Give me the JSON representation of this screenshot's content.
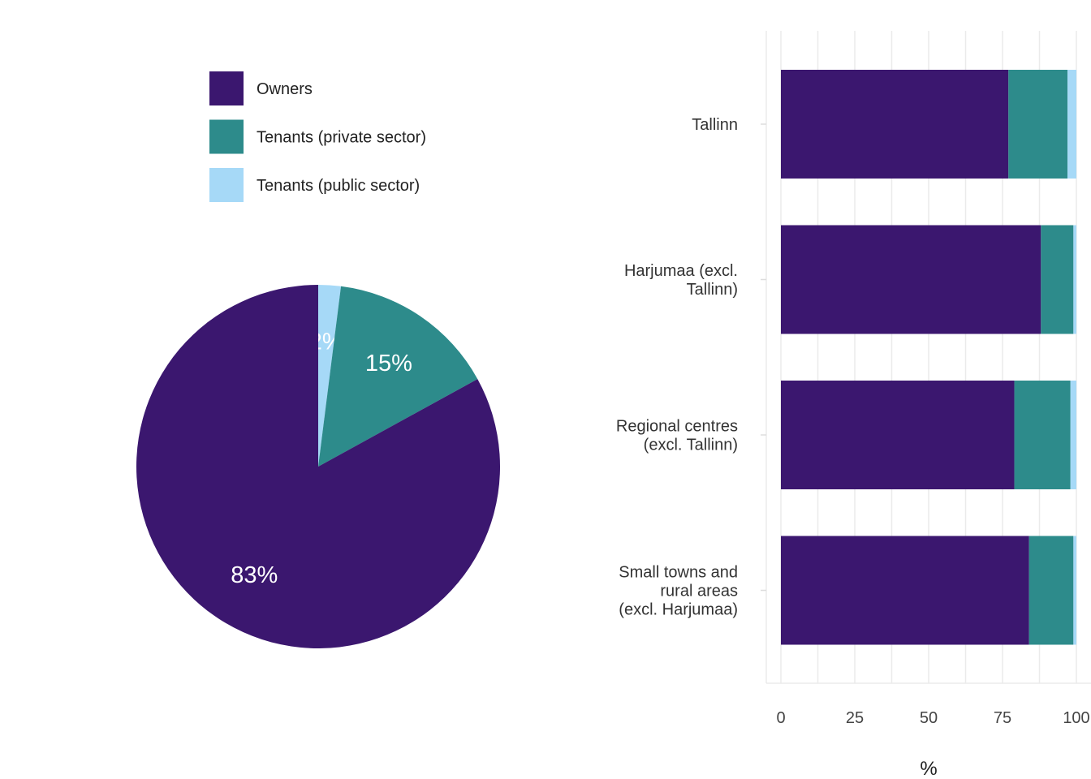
{
  "legend": {
    "items": [
      {
        "label": "Owners",
        "color": "#3b176f"
      },
      {
        "label": "Tenants (private sector)",
        "color": "#2d8b8b"
      },
      {
        "label": "Tenants (public sector)",
        "color": "#a6d9f7"
      }
    ]
  },
  "chart_data": [
    {
      "type": "pie",
      "slices": [
        {
          "name": "Owners",
          "value": 83,
          "label": "83%",
          "color": "#3b176f"
        },
        {
          "name": "Tenants (private sector)",
          "value": 15,
          "label": "15%",
          "color": "#2d8b8b"
        },
        {
          "name": "Tenants (public sector)",
          "value": 2,
          "label": "2%",
          "color": "#a6d9f7"
        }
      ]
    },
    {
      "type": "bar",
      "orientation": "horizontal",
      "stacked": true,
      "categories": [
        "Tallinn",
        "Harjumaa (excl. Tallinn)",
        "Regional centres (excl. Tallinn)",
        "Small towns and rural areas (excl. Harjumaa)"
      ],
      "category_lines": [
        [
          "Tallinn"
        ],
        [
          "Harjumaa (excl.",
          "Tallinn)"
        ],
        [
          "Regional centres",
          "(excl. Tallinn)"
        ],
        [
          "Small towns and",
          "rural areas",
          "(excl. Harjumaa)"
        ]
      ],
      "series": [
        {
          "name": "Owners",
          "color": "#3b176f",
          "values": [
            77,
            88,
            79,
            84
          ]
        },
        {
          "name": "Tenants (private sector)",
          "color": "#2d8b8b",
          "values": [
            20,
            11,
            19,
            15
          ]
        },
        {
          "name": "Tenants (public sector)",
          "color": "#a6d9f7",
          "values": [
            3,
            1,
            2,
            1
          ]
        }
      ],
      "xlabel": "%",
      "xlim": [
        0,
        100
      ],
      "xticks": [
        0,
        25,
        50,
        75,
        100
      ],
      "grid": true
    }
  ]
}
